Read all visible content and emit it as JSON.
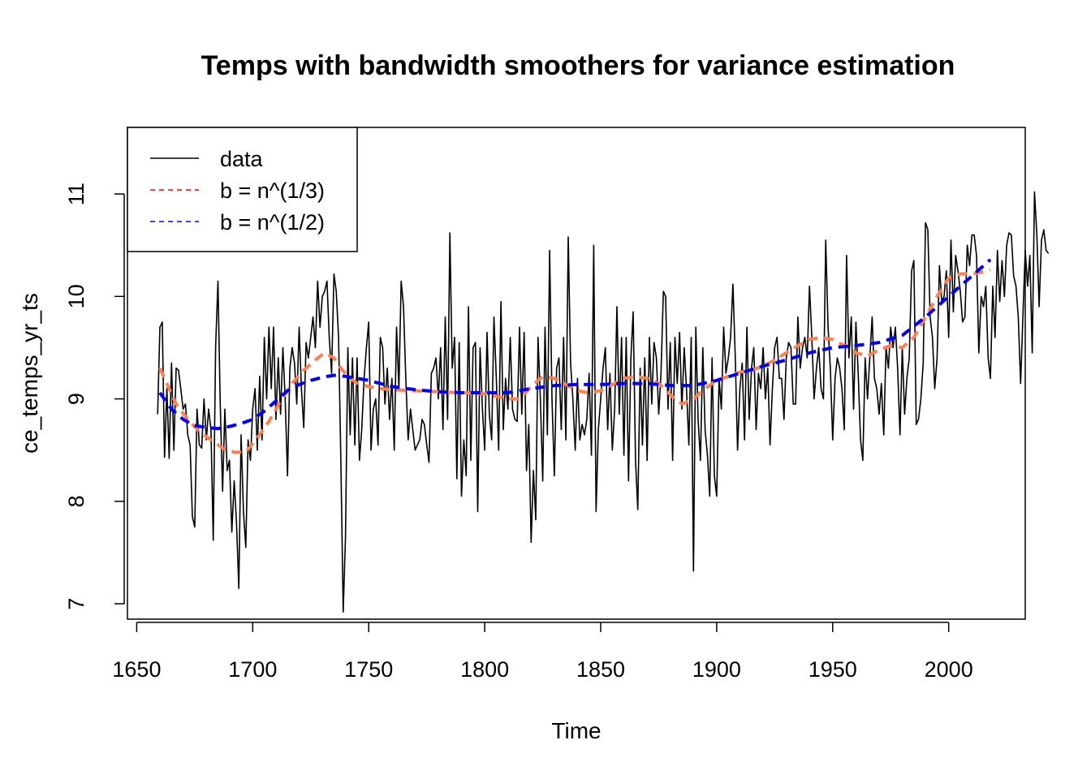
{
  "chart_data": {
    "type": "line",
    "title": "Temps with bandwidth smoothers for variance estimation",
    "xlabel": "Time",
    "ylabel": "ce_temps_yr_ts",
    "xlim": [
      1646,
      2033
    ],
    "ylim": [
      6.85,
      11.65
    ],
    "xticks": [
      1650,
      1700,
      1750,
      1800,
      1850,
      1900,
      1950,
      2000
    ],
    "yticks": [
      7,
      8,
      9,
      10,
      11
    ],
    "grid": false,
    "legend_position": "top-left",
    "legend": [
      {
        "label": "data",
        "color": "#000000",
        "style": "solid"
      },
      {
        "label": "b = n^(1/3)",
        "color": "#ff0000",
        "style": "dashed"
      },
      {
        "label": "b = n^(1/2)",
        "color": "#0000ff",
        "style": "dashed"
      }
    ],
    "series": [
      {
        "name": "data",
        "color": "#000000",
        "style": "solid",
        "x_start": 1659,
        "x_step": 1,
        "values": [
          8.85,
          9.7,
          9.75,
          8.43,
          9.1,
          8.42,
          9.35,
          8.5,
          9.3,
          9.28,
          9.1,
          8.9,
          8.95,
          8.65,
          8.55,
          7.85,
          7.75,
          8.9,
          8.55,
          8.52,
          9.0,
          8.6,
          8.9,
          8.7,
          7.62,
          9.5,
          10.15,
          8.95,
          8.1,
          8.9,
          8.3,
          8.4,
          7.7,
          8.2,
          7.8,
          7.15,
          8.65,
          7.9,
          7.55,
          8.6,
          8.4,
          8.9,
          9.1,
          8.5,
          9.22,
          8.6,
          9.6,
          9.0,
          9.7,
          9.1,
          9.7,
          8.8,
          9.4,
          8.85,
          9.5,
          9.0,
          8.25,
          9.3,
          9.5,
          9.35,
          8.95,
          9.7,
          9.1,
          8.72,
          9.55,
          9.4,
          9.6,
          9.8,
          9.5,
          10.15,
          9.7,
          10.0,
          10.05,
          10.15,
          9.6,
          9.25,
          10.22,
          10.05,
          9.6,
          8.4,
          6.92,
          7.65,
          9.5,
          8.65,
          9.4,
          8.55,
          9.4,
          8.4,
          8.7,
          9.2,
          9.5,
          9.75,
          8.5,
          8.9,
          9.0,
          8.55,
          9.6,
          9.5,
          8.95,
          9.3,
          8.8,
          9.2,
          8.5,
          9.7,
          9.1,
          10.15,
          9.9,
          9.2,
          8.6,
          8.9,
          8.7,
          8.5,
          8.55,
          8.6,
          8.8,
          8.75,
          8.55,
          8.38,
          9.25,
          9.3,
          9.4,
          9.0,
          9.5,
          8.7,
          9.8,
          8.8,
          10.62,
          9.3,
          9.6,
          8.22,
          9.55,
          8.05,
          8.6,
          8.25,
          9.9,
          8.4,
          9.5,
          9.55,
          7.9,
          9.5,
          8.9,
          8.5,
          9.65,
          8.85,
          8.6,
          9.8,
          9.2,
          8.5,
          9.95,
          8.7,
          9.2,
          8.9,
          9.6,
          8.9,
          8.8,
          8.78,
          9.7,
          8.85,
          9.65,
          8.3,
          8.75,
          7.6,
          8.3,
          7.82,
          9.6,
          9.0,
          8.2,
          9.7,
          8.65,
          10.45,
          9.0,
          8.25,
          9.3,
          9.4,
          8.7,
          9.6,
          8.6,
          10.58,
          9.35,
          9.0,
          8.5,
          9.2,
          8.6,
          8.75,
          8.65,
          8.8,
          9.25,
          8.45,
          10.5,
          7.9,
          8.7,
          9.0,
          9.3,
          9.5,
          8.7,
          9.25,
          8.5,
          8.9,
          9.9,
          8.85,
          9.6,
          8.45,
          9.6,
          8.2,
          9.4,
          9.85,
          8.4,
          7.92,
          9.3,
          8.55,
          9.4,
          8.4,
          9.6,
          8.95,
          9.55,
          9.4,
          8.85,
          9.25,
          10.05,
          10.0,
          8.9,
          9.55,
          8.4,
          9.6,
          9.15,
          9.65,
          8.9,
          9.5,
          9.1,
          8.55,
          9.6,
          7.32,
          9.7,
          8.8,
          8.4,
          9.5,
          8.7,
          8.45,
          8.05,
          9.4,
          8.25,
          8.05,
          9.2,
          8.9,
          9.7,
          9.25,
          9.4,
          9.6,
          10.12,
          9.4,
          8.5,
          9.1,
          9.35,
          8.6,
          9.7,
          8.8,
          9.3,
          9.5,
          8.7,
          9.25,
          9.1,
          9.5,
          9.0,
          9.3,
          8.55,
          9.1,
          9.5,
          9.6,
          9.2,
          9.2,
          8.8,
          9.4,
          9.55,
          9.5,
          8.95,
          8.95,
          9.8,
          9.3,
          9.5,
          9.6,
          9.4,
          10.1,
          9.6,
          9.0,
          9.3,
          9.5,
          9.1,
          9.0,
          10.55,
          9.7,
          9.3,
          8.6,
          9.2,
          9.4,
          9.3,
          9.1,
          8.7,
          10.4,
          9.4,
          9.8,
          8.9,
          9.75,
          9.25,
          8.6,
          8.4,
          9.4,
          9.0,
          9.4,
          9.8,
          9.2,
          9.1,
          8.85,
          9.15,
          8.65,
          9.5,
          9.3,
          9.7,
          9.5,
          9.7,
          9.3,
          8.65,
          9.5,
          8.85,
          9.2,
          9.4,
          10.25,
          10.35,
          8.75,
          8.8,
          9.0,
          9.35,
          10.72,
          10.65,
          9.8,
          9.6,
          9.1,
          9.4,
          10.3,
          9.95,
          10.0,
          10.25,
          9.6,
          10.55,
          9.85,
          10.4,
          10.25,
          10.05,
          9.75,
          9.8,
          10.5,
          10.3,
          10.6,
          10.6,
          10.4,
          9.45,
          10.0,
          9.9,
          10.1,
          9.4,
          9.2,
          10.1,
          9.6,
          10.45,
          9.95,
          10.35,
          10.0,
          10.5,
          10.62,
          10.6,
          10.2,
          10.1,
          9.8,
          9.15,
          9.8,
          10.45,
          10.1,
          10.4,
          9.45,
          11.02,
          10.6,
          9.9,
          10.55,
          10.65,
          10.45,
          10.42
        ]
      },
      {
        "name": "b = n^(1/3)",
        "color": "#ff0000",
        "draw_color": "#ff7f50",
        "style": "dashed",
        "x": [
          1660,
          1663,
          1667,
          1672,
          1677,
          1682,
          1687,
          1692,
          1697,
          1702,
          1707,
          1712,
          1717,
          1722,
          1727,
          1731,
          1735,
          1738,
          1741,
          1745,
          1750,
          1755,
          1760,
          1770,
          1780,
          1790,
          1800,
          1810,
          1815,
          1820,
          1825,
          1830,
          1835,
          1840,
          1845,
          1850,
          1855,
          1860,
          1865,
          1870,
          1875,
          1880,
          1885,
          1890,
          1895,
          1900,
          1905,
          1910,
          1915,
          1920,
          1925,
          1930,
          1935,
          1940,
          1945,
          1950,
          1955,
          1960,
          1965,
          1970,
          1975,
          1980,
          1985,
          1990,
          1995,
          2000,
          2005,
          2010,
          2015,
          2018
        ],
        "values": [
          9.3,
          9.15,
          8.95,
          8.8,
          8.68,
          8.6,
          8.52,
          8.48,
          8.48,
          8.62,
          8.78,
          8.98,
          9.15,
          9.28,
          9.38,
          9.45,
          9.4,
          9.3,
          9.22,
          9.15,
          9.12,
          9.1,
          9.09,
          9.08,
          9.07,
          9.06,
          9.05,
          9.0,
          9.0,
          9.12,
          9.22,
          9.2,
          9.14,
          9.08,
          9.06,
          9.08,
          9.14,
          9.2,
          9.22,
          9.2,
          9.15,
          9.04,
          8.95,
          9.0,
          9.1,
          9.18,
          9.22,
          9.26,
          9.28,
          9.32,
          9.38,
          9.45,
          9.52,
          9.58,
          9.6,
          9.58,
          9.52,
          9.45,
          9.42,
          9.48,
          9.52,
          9.5,
          9.6,
          9.8,
          10.0,
          10.18,
          10.22,
          10.22,
          10.24,
          10.26
        ]
      },
      {
        "name": "b = n^(1/2)",
        "color": "#0000ff",
        "style": "dashed",
        "x": [
          1660,
          1665,
          1670,
          1675,
          1680,
          1685,
          1690,
          1695,
          1700,
          1705,
          1710,
          1715,
          1720,
          1725,
          1730,
          1735,
          1740,
          1750,
          1760,
          1770,
          1780,
          1790,
          1800,
          1810,
          1820,
          1830,
          1840,
          1850,
          1860,
          1870,
          1880,
          1890,
          1900,
          1910,
          1920,
          1930,
          1940,
          1950,
          1960,
          1970,
          1980,
          1990,
          2000,
          2010,
          2018
        ],
        "values": [
          9.06,
          8.9,
          8.8,
          8.74,
          8.72,
          8.71,
          8.73,
          8.76,
          8.8,
          8.88,
          8.98,
          9.08,
          9.14,
          9.18,
          9.21,
          9.23,
          9.22,
          9.18,
          9.12,
          9.09,
          9.07,
          9.06,
          9.06,
          9.06,
          9.1,
          9.13,
          9.14,
          9.14,
          9.15,
          9.15,
          9.13,
          9.13,
          9.18,
          9.25,
          9.32,
          9.38,
          9.45,
          9.5,
          9.52,
          9.55,
          9.62,
          9.8,
          10.0,
          10.2,
          10.36
        ]
      }
    ]
  }
}
